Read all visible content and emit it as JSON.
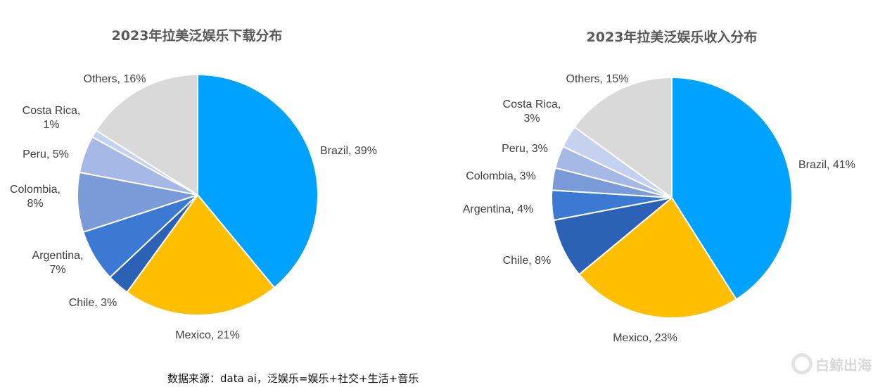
{
  "chart_data": [
    {
      "type": "pie",
      "title": "2023年拉美泛娱乐下载分布",
      "slices": [
        {
          "label": "Brazil",
          "value": 39,
          "text": "Brazil, 39%",
          "color": "#00a2ff"
        },
        {
          "label": "Mexico",
          "value": 21,
          "text": "Mexico, 21%",
          "color": "#ffbf00"
        },
        {
          "label": "Chile",
          "value": 3,
          "text": "Chile, 3%",
          "color": "#2c62b5"
        },
        {
          "label": "Argentina",
          "value": 7,
          "text": "Argentina, 7%",
          "color": "#3b79d3"
        },
        {
          "label": "Colombia",
          "value": 8,
          "text": "Colombia, 8%",
          "color": "#7a9ad8"
        },
        {
          "label": "Peru",
          "value": 5,
          "text": "Peru, 5%",
          "color": "#a6b9e6"
        },
        {
          "label": "Costa Rica",
          "value": 1,
          "text": "Costa Rica, 1%",
          "color": "#c4d1ef"
        },
        {
          "label": "Others",
          "value": 16,
          "text": "Others, 16%",
          "color": "#d9d9d9"
        }
      ]
    },
    {
      "type": "pie",
      "title": "2023年拉美泛娱乐收入分布",
      "slices": [
        {
          "label": "Brazil",
          "value": 41,
          "text": "Brazil, 41%",
          "color": "#00a2ff"
        },
        {
          "label": "Mexico",
          "value": 23,
          "text": "Mexico, 23%",
          "color": "#ffbf00"
        },
        {
          "label": "Chile",
          "value": 8,
          "text": "Chile, 8%",
          "color": "#2c62b5"
        },
        {
          "label": "Argentina",
          "value": 4,
          "text": "Argentina, 4%",
          "color": "#3b79d3"
        },
        {
          "label": "Colombia",
          "value": 3,
          "text": "Colombia, 3%",
          "color": "#7a9ad8"
        },
        {
          "label": "Peru",
          "value": 3,
          "text": "Peru, 3%",
          "color": "#a6b9e6"
        },
        {
          "label": "Costa Rica",
          "value": 3,
          "text": "Costa Rica, 3%",
          "color": "#c4d1ef"
        },
        {
          "label": "Others",
          "value": 15,
          "text": "Others, 15%",
          "color": "#d9d9d9"
        }
      ]
    }
  ],
  "source_note": "数据来源：data ai，泛娱乐=娱乐+社交+生活+音乐",
  "watermark": "白鲸出海",
  "watermark_icon": "whale-logo-icon"
}
